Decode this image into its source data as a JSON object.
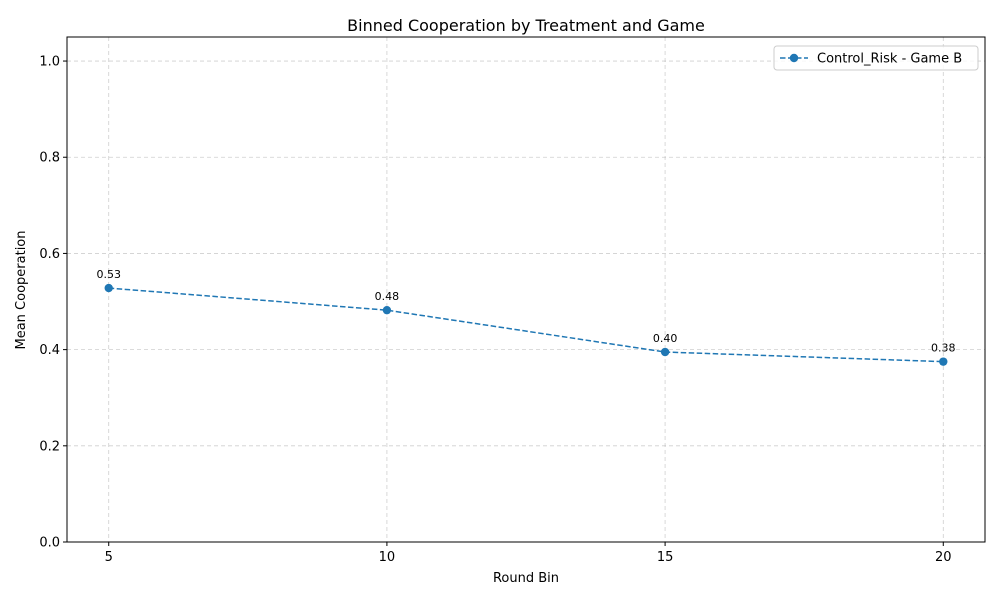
{
  "chart_data": {
    "type": "line",
    "title": "Binned Cooperation by Treatment and Game",
    "xlabel": "Round Bin",
    "ylabel": "Mean Cooperation",
    "x": [
      5,
      10,
      15,
      20
    ],
    "x_ticks": [
      "5",
      "10",
      "15",
      "20"
    ],
    "y_ticks": [
      "0.0",
      "0.2",
      "0.4",
      "0.6",
      "0.8",
      "1.0"
    ],
    "ylim": [
      0,
      1.05
    ],
    "grid": true,
    "legend_position": "top-right",
    "series": [
      {
        "name": "Control_Risk - Game B",
        "values": [
          0.528,
          0.482,
          0.395,
          0.375
        ],
        "labels": [
          "0.53",
          "0.48",
          "0.40",
          "0.38"
        ],
        "color": "#1f77b4",
        "line_style": "dashed",
        "marker": "circle"
      }
    ]
  }
}
